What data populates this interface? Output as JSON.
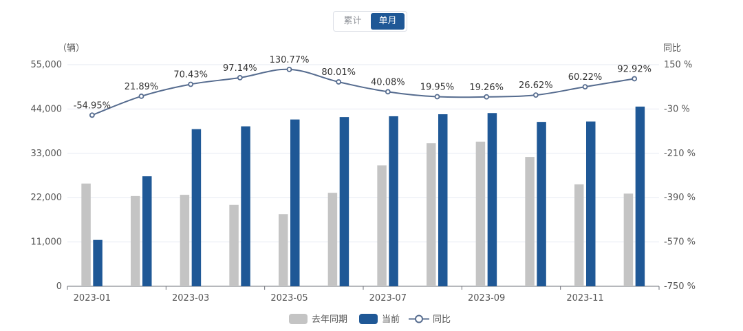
{
  "toggle": {
    "cumulative_label": "累计",
    "monthly_label": "单月",
    "active": "monthly"
  },
  "chart_data": {
    "type": "bar+line",
    "categories": [
      "2023-01",
      "2023-02",
      "2023-03",
      "2023-04",
      "2023-05",
      "2023-06",
      "2023-07",
      "2023-08",
      "2023-09",
      "2023-10",
      "2023-11",
      "2023-12"
    ],
    "x_tick_labels": [
      "2023-01",
      "",
      "2023-03",
      "",
      "2023-05",
      "",
      "2023-07",
      "",
      "2023-09",
      "",
      "2023-11",
      ""
    ],
    "series": [
      {
        "name": "去年同期",
        "type": "bar",
        "axis": "left",
        "color": "#c4c4c4",
        "values": [
          25500,
          22400,
          22700,
          20200,
          17900,
          23200,
          30000,
          35500,
          35900,
          32100,
          25300,
          23000
        ]
      },
      {
        "name": "当前",
        "type": "bar",
        "axis": "left",
        "color": "#1f5896",
        "values": [
          11500,
          27300,
          39000,
          39700,
          41400,
          42000,
          42200,
          42700,
          43000,
          40800,
          40900,
          44600
        ]
      },
      {
        "name": "同比",
        "type": "line",
        "axis": "right",
        "color": "#566c8f",
        "values": [
          -54.95,
          21.89,
          70.43,
          97.14,
          130.77,
          80.01,
          40.08,
          19.95,
          19.26,
          26.62,
          60.22,
          92.92
        ],
        "labels": [
          "-54.95%",
          "21.89%",
          "70.43%",
          "97.14%",
          "130.77%",
          "80.01%",
          "40.08%",
          "19.95%",
          "19.26%",
          "26.62%",
          "60.22%",
          "92.92%"
        ]
      }
    ],
    "left_axis": {
      "label": "（辆）",
      "ylim": [
        0,
        55000
      ],
      "ticks": [
        0,
        11000,
        22000,
        33000,
        44000,
        55000
      ],
      "tick_labels": [
        "0",
        "11,000",
        "22,000",
        "33,000",
        "44,000",
        "55,000"
      ]
    },
    "right_axis": {
      "label": "同比",
      "ylim": [
        -750,
        150
      ],
      "ticks": [
        -750,
        -570,
        -390,
        -210,
        -30,
        150
      ],
      "tick_labels": [
        "-750 %",
        "-570 %",
        "-390 %",
        "-210 %",
        "-30 %",
        "150 %"
      ]
    },
    "legend": {
      "position": "bottom",
      "items": [
        {
          "name": "去年同期",
          "kind": "bar-gray"
        },
        {
          "name": "当前",
          "kind": "bar-blue"
        },
        {
          "name": "同比",
          "kind": "line"
        }
      ]
    }
  }
}
